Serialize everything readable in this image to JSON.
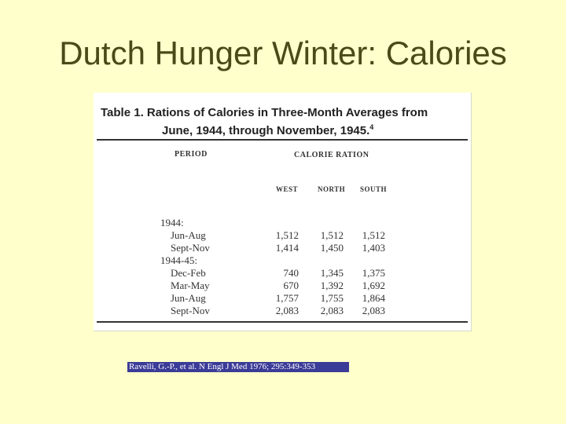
{
  "slide": {
    "title": "Dutch Hunger Winter:  Calories"
  },
  "table": {
    "caption_line1": "Table 1. Rations of Calories in Three-Month Averages from",
    "caption_line2": "June, 1944, through November, 1945.",
    "caption_ref": "4",
    "period_header": "Period",
    "ration_header": "Calorie Ration",
    "columns": [
      "West",
      "North",
      "South"
    ],
    "groups": [
      {
        "year": "1944:",
        "rows": [
          {
            "period": "Jun-Aug",
            "values": [
              "1,512",
              "1,512",
              "1,512"
            ]
          },
          {
            "period": "Sept-Nov",
            "values": [
              "1,414",
              "1,450",
              "1,403"
            ]
          }
        ]
      },
      {
        "year": "1944-45:",
        "rows": [
          {
            "period": "Dec-Feb",
            "values": [
              "740",
              "1,345",
              "1,375"
            ]
          },
          {
            "period": "Mar-May",
            "values": [
              "670",
              "1,392",
              "1,692"
            ]
          },
          {
            "period": "Jun-Aug",
            "values": [
              "1,757",
              "1,755",
              "1,864"
            ]
          },
          {
            "period": "Sept-Nov",
            "values": [
              "2,083",
              "2,083",
              "2,083"
            ]
          }
        ]
      }
    ]
  },
  "citation": "Ravelli, G.-P., et al. N Engl J Med 1976; 295:349-353",
  "colors": {
    "background": "#ffffcc",
    "title": "#4a4a18",
    "citation_bg": "#3b3b98"
  }
}
